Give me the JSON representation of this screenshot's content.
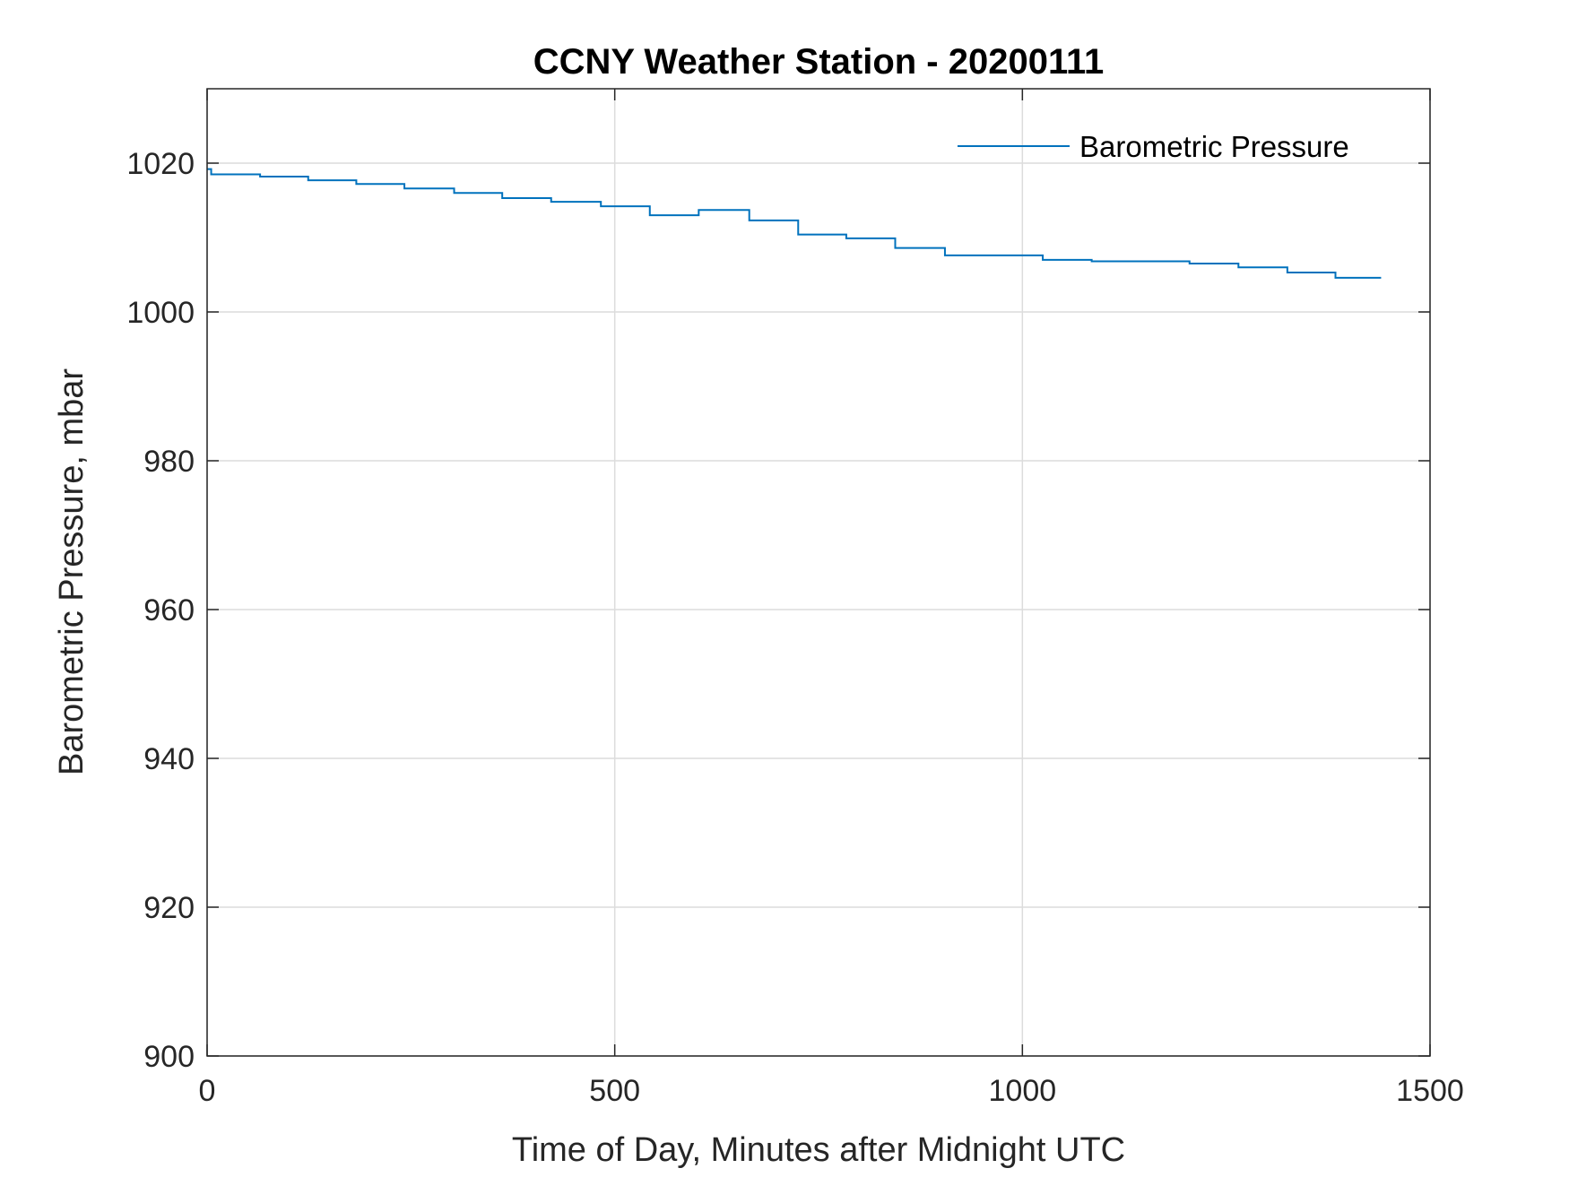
{
  "chart_data": {
    "type": "line",
    "title": "CCNY Weather Station - 20200111",
    "xlabel": "Time of Day, Minutes after Midnight UTC",
    "ylabel": "Barometric Pressure, mbar",
    "xlim": [
      0,
      1500
    ],
    "ylim": [
      900,
      1030
    ],
    "xticks": [
      0,
      500,
      1000,
      1500
    ],
    "yticks": [
      900,
      920,
      940,
      960,
      980,
      1000,
      1020
    ],
    "grid": true,
    "legend_placement": "top-right",
    "series": [
      {
        "name": "Barometric Pressure",
        "color": "#0072BD",
        "step": true,
        "x": [
          0,
          5,
          65,
          124,
          183,
          242,
          303,
          362,
          422,
          483,
          543,
          603,
          665,
          725,
          784,
          844,
          905,
          1025,
          1085,
          1205,
          1265,
          1325,
          1384,
          1440
        ],
        "y": [
          1019.2,
          1018.5,
          1018.2,
          1017.7,
          1017.2,
          1016.6,
          1016.0,
          1015.3,
          1014.8,
          1014.2,
          1013.0,
          1013.7,
          1012.3,
          1010.4,
          1009.9,
          1008.6,
          1007.6,
          1007.0,
          1006.8,
          1006.5,
          1006.0,
          1005.3,
          1004.6,
          1004.6
        ]
      }
    ]
  }
}
